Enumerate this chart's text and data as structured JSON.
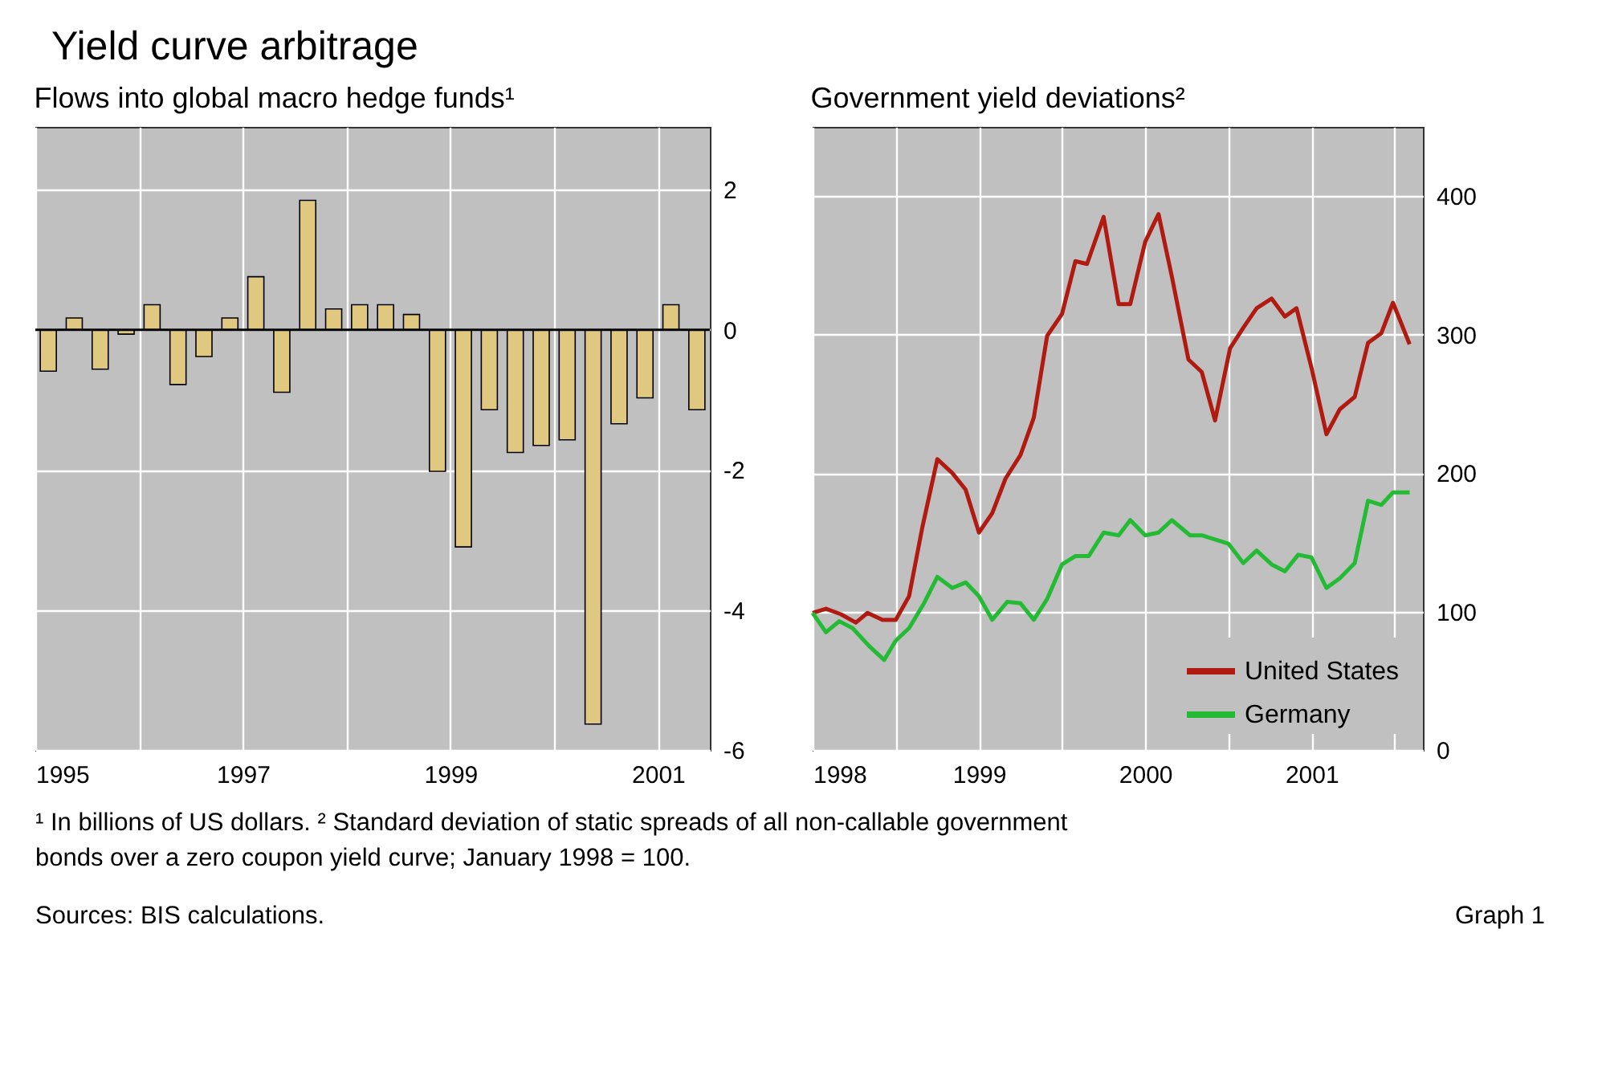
{
  "chart_data": [
    {
      "type": "other",
      "title": "Yield curve arbitrage",
      "annotations": [
        "¹ In billions of US dollars.   ² Standard deviation of static spreads of all non-callable government bonds over a zero coupon yield curve; January 1998 = 100.",
        "Sources: BIS calculations.",
        "Graph 1"
      ]
    },
    {
      "type": "bar",
      "title": "Flows into global macro hedge funds¹",
      "x": [
        1995.125,
        1995.375,
        1995.625,
        1995.875,
        1996.125,
        1996.375,
        1996.625,
        1996.875,
        1997.125,
        1997.375,
        1997.625,
        1997.875,
        1998.125,
        1998.375,
        1998.625,
        1998.875,
        1999.125,
        1999.375,
        1999.625,
        1999.875,
        2000.125,
        2000.375,
        2000.625,
        2000.875,
        2001.125,
        2001.375
      ],
      "series": [
        {
          "color": "#e0c880",
          "values": [
            -0.59,
            0.17,
            -0.56,
            -0.06,
            0.36,
            -0.78,
            -0.38,
            0.17,
            0.76,
            -0.89,
            1.85,
            0.3,
            0.36,
            0.36,
            0.22,
            -2.02,
            -3.1,
            -1.14,
            -1.75,
            -1.65,
            -1.57,
            -5.63,
            -1.34,
            -0.97,
            0.36,
            -1.14
          ]
        }
      ],
      "xlim": [
        1995,
        2001.5
      ],
      "xticks": [
        1995,
        {
          "value": 1996,
          "label": null
        },
        1997,
        {
          "value": 1998,
          "label": null
        },
        1999,
        {
          "value": 2000,
          "label": null
        },
        2001
      ],
      "ylim": [
        -6,
        2.9
      ],
      "yticks": [
        -6,
        -4,
        -2,
        0,
        2
      ],
      "grid": true,
      "ref_lines": [
        {
          "axis": "y",
          "value": 0,
          "color": "#000000"
        }
      ]
    },
    {
      "type": "line",
      "title": "Government yield deviations²",
      "legend": "bottom right",
      "grid": true,
      "series": [
        {
          "name": "United States",
          "color": "#b01a10",
          "x": [
            1998.0,
            1998.08,
            1998.17,
            1998.26,
            1998.33,
            1998.42,
            1998.5,
            1998.58,
            1998.66,
            1998.75,
            1998.84,
            1998.92,
            1999.0,
            1999.08,
            1999.16,
            1999.25,
            1999.33,
            1999.41,
            1999.5,
            1999.58,
            1999.65,
            1999.75,
            1999.84,
            1999.91,
            2000.0,
            2000.08,
            2000.16,
            2000.26,
            2000.34,
            2000.42,
            2000.51,
            2000.59,
            2000.67,
            2000.76,
            2000.84,
            2000.91,
            2001.0,
            2001.09,
            2001.17,
            2001.26,
            2001.34,
            2001.42,
            2001.49,
            2001.59
          ],
          "values": [
            99,
            102,
            98,
            92,
            99,
            94,
            94,
            111,
            161,
            210,
            200,
            188,
            157,
            171,
            196,
            213,
            240,
            299,
            315,
            353,
            351,
            385,
            322,
            322,
            367,
            387,
            342,
            282,
            273,
            238,
            290,
            305,
            319,
            326,
            313,
            319,
            276,
            228,
            246,
            255,
            294,
            301,
            323,
            293
          ]
        },
        {
          "name": "Germany",
          "color": "#22bb33",
          "x": [
            1998.0,
            1998.08,
            1998.16,
            1998.24,
            1998.34,
            1998.43,
            1998.5,
            1998.58,
            1998.67,
            1998.75,
            1998.84,
            1998.92,
            1999.0,
            1999.08,
            1999.17,
            1999.25,
            1999.33,
            1999.41,
            1999.5,
            1999.58,
            1999.66,
            1999.75,
            1999.84,
            1999.91,
            2000.0,
            2000.08,
            2000.16,
            2000.27,
            2000.34,
            2000.42,
            2000.5,
            2000.59,
            2000.67,
            2000.76,
            2000.84,
            2000.92,
            2001.0,
            2001.09,
            2001.17,
            2001.26,
            2001.34,
            2001.42,
            2001.49,
            2001.59
          ],
          "values": [
            99,
            85,
            93,
            88,
            75,
            65,
            79,
            88,
            106,
            125,
            117,
            121,
            111,
            94,
            107,
            106,
            94,
            109,
            134,
            140,
            140,
            157,
            155,
            166,
            155,
            157,
            166,
            155,
            155,
            152,
            149,
            135,
            144,
            134,
            129,
            141,
            139,
            117,
            124,
            135,
            180,
            177,
            186,
            186
          ]
        }
      ],
      "xlim": [
        1998,
        2001.67
      ],
      "xticks": [
        1998,
        {
          "value": 1998.5,
          "label": null
        },
        1999,
        {
          "value": 1999.5,
          "label": null
        },
        2000,
        {
          "value": 2000.5,
          "label": null
        },
        2001,
        {
          "value": 2001.5,
          "label": null
        }
      ],
      "ylim": [
        0,
        450
      ],
      "yticks": [
        0,
        100,
        200,
        300,
        400
      ]
    }
  ]
}
